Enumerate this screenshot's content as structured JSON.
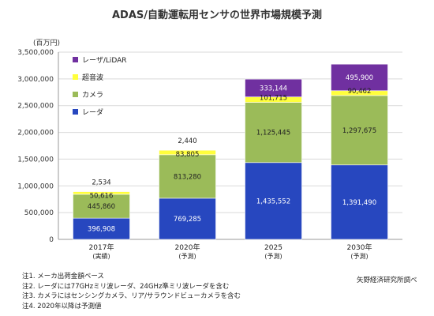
{
  "title": "ADAS/自動運転用センサの世界市場規模予測",
  "unit_label": "(百万円)",
  "colors": {
    "レーダ": "#2747bf",
    "カメラ": "#9bbb59",
    "超音波": "#ffff3c",
    "レーザ/LiDAR": "#7030a0"
  },
  "legend": [
    "レーザ/LiDAR",
    "超音波",
    "カメラ",
    "レーダ"
  ],
  "chart_data": {
    "type": "bar",
    "stacked": true,
    "title": "ADAS/自動運転用センサの世界市場規模予測",
    "ylabel": "(百万円)",
    "ylim": [
      0,
      3500000
    ],
    "yticks": [
      "0",
      "500,000",
      "1,000,000",
      "1,500,000",
      "2,000,000",
      "2,500,000",
      "3,000,000",
      "3,500,000"
    ],
    "categories": [
      "2017年",
      "2020年",
      "2025",
      "2030年"
    ],
    "category_sub": [
      "(実績)",
      "(予測)",
      "(予測)",
      "(予測)"
    ],
    "series": [
      {
        "name": "レーダ",
        "values": [
          396908,
          769285,
          1435552,
          1391490
        ],
        "labels": [
          "396,908",
          "769,285",
          "1,435,552",
          "1,391,490"
        ]
      },
      {
        "name": "カメラ",
        "values": [
          445860,
          813280,
          1125445,
          1297675
        ],
        "labels": [
          "445,860",
          "813,280",
          "1,125,445",
          "1,297,675"
        ]
      },
      {
        "name": "超音波",
        "values": [
          50616,
          83805,
          101715,
          90462
        ],
        "labels": [
          "50,616",
          "83,805",
          "101,715",
          "90,462"
        ]
      },
      {
        "name": "レーザ/LiDAR",
        "values": [
          2534,
          2440,
          333144,
          495900
        ],
        "labels": [
          "2,534",
          "2,440",
          "333,144",
          "495,900"
        ]
      }
    ],
    "grid": true,
    "legend_position": "top-left"
  },
  "notes": [
    "注1. メーカ出荷金額ベース",
    "注2. レーダには77GHzミリ波レーダ、24GHz準ミリ波レーダを含む",
    "注3. カメラにはセンシングカメラ、リア/サラウンドビューカメラを含む",
    "注4. 2020年以降は予測値"
  ],
  "source": "矢野経済研究所調べ"
}
